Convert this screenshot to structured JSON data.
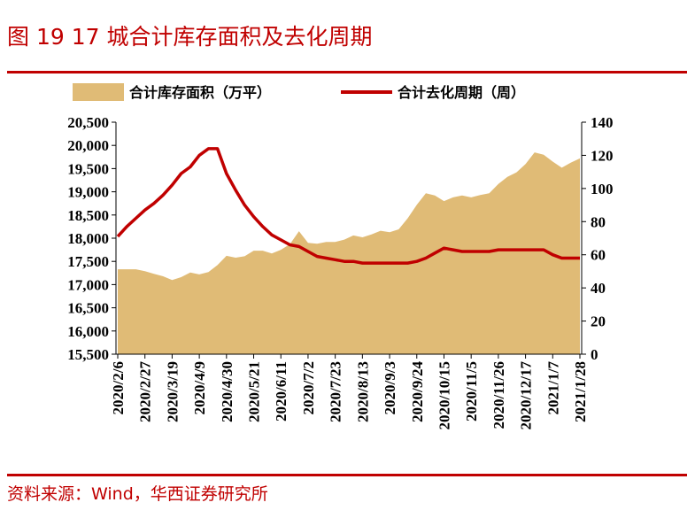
{
  "title": "图 19  17 城合计库存面积及去化周期",
  "source": "资料来源：Wind，华西证券研究所",
  "colors": {
    "accent": "#c00000",
    "area": "#e0bb76",
    "line": "#c00000"
  },
  "chart_data": {
    "type": "area",
    "legend": {
      "placement": "top",
      "entries": [
        "合计库存面积（万平）",
        "合计去化周期（周）"
      ]
    },
    "x_tick_labels": [
      "2020/2/6",
      "2020/2/27",
      "2020/3/19",
      "2020/4/9",
      "2020/4/30",
      "2020/5/21",
      "2020/6/11",
      "2020/7/2",
      "2020/7/23",
      "2020/8/13",
      "2020/9/3",
      "2020/9/24",
      "2020/10/15",
      "2020/11/5",
      "2020/11/26",
      "2020/12/17",
      "2021/1/7",
      "2021/1/28"
    ],
    "x": [
      "2020/2/6",
      "2020/2/13",
      "2020/2/20",
      "2020/2/27",
      "2020/3/5",
      "2020/3/12",
      "2020/3/19",
      "2020/3/26",
      "2020/4/2",
      "2020/4/9",
      "2020/4/16",
      "2020/4/23",
      "2020/4/30",
      "2020/5/7",
      "2020/5/14",
      "2020/5/21",
      "2020/5/28",
      "2020/6/4",
      "2020/6/11",
      "2020/6/18",
      "2020/6/25",
      "2020/7/2",
      "2020/7/9",
      "2020/7/16",
      "2020/7/23",
      "2020/7/30",
      "2020/8/6",
      "2020/8/13",
      "2020/8/20",
      "2020/8/27",
      "2020/9/3",
      "2020/9/10",
      "2020/9/17",
      "2020/9/24",
      "2020/10/1",
      "2020/10/8",
      "2020/10/15",
      "2020/10/22",
      "2020/10/29",
      "2020/11/5",
      "2020/11/12",
      "2020/11/19",
      "2020/11/26",
      "2020/12/3",
      "2020/12/10",
      "2020/12/17",
      "2020/12/24",
      "2020/12/31",
      "2021/1/7",
      "2021/1/14",
      "2021/1/21",
      "2021/1/28"
    ],
    "y_left": {
      "range": [
        15500,
        20500
      ],
      "ticks": [
        "15,500",
        "16,000",
        "16,500",
        "17,000",
        "17,500",
        "18,000",
        "18,500",
        "19,000",
        "19,500",
        "20,000",
        "20,500"
      ]
    },
    "y_right": {
      "range": [
        0,
        140
      ],
      "ticks": [
        "0",
        "20",
        "40",
        "60",
        "80",
        "100",
        "120",
        "140"
      ]
    },
    "series": [
      {
        "type": "area",
        "axis": "left",
        "values": [
          17330,
          17330,
          17330,
          17290,
          17230,
          17180,
          17100,
          17160,
          17260,
          17220,
          17270,
          17420,
          17620,
          17580,
          17610,
          17730,
          17730,
          17670,
          17750,
          17870,
          18150,
          17900,
          17880,
          17920,
          17920,
          17970,
          18060,
          18020,
          18080,
          18160,
          18130,
          18190,
          18430,
          18720,
          18970,
          18920,
          18800,
          18880,
          18920,
          18880,
          18930,
          18970,
          19170,
          19320,
          19420,
          19600,
          19850,
          19800,
          19650,
          19520,
          19630,
          19720
        ]
      },
      {
        "type": "line",
        "axis": "right",
        "values": [
          71,
          77,
          82,
          87,
          91,
          96,
          102,
          109,
          113,
          120,
          124,
          124,
          109,
          99,
          90,
          83,
          77,
          72,
          69,
          66,
          65,
          62,
          59,
          58,
          57,
          56,
          56,
          55,
          55,
          55,
          55,
          55,
          55,
          56,
          58,
          61,
          64,
          63,
          62,
          62,
          62,
          62,
          63,
          63,
          63,
          63,
          63,
          63,
          60,
          58,
          58,
          58
        ]
      }
    ]
  }
}
